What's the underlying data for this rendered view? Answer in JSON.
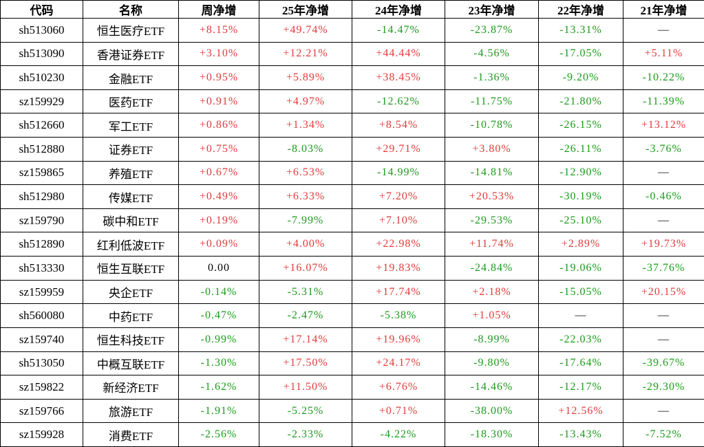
{
  "chart_data": {
    "type": "table",
    "columns": [
      "代码",
      "名称",
      "周净增",
      "25年净增",
      "24年净增",
      "23年净增",
      "22年净增",
      "21年净增"
    ],
    "rows": [
      [
        "sh513060",
        "恒生医疗ETF",
        "+8.15%",
        "+49.74%",
        "-14.47%",
        "-23.87%",
        "-13.31%",
        "—"
      ],
      [
        "sh513090",
        "香港证券ETF",
        "+3.10%",
        "+12.21%",
        "+44.44%",
        "-4.56%",
        "-17.05%",
        "+5.11%"
      ],
      [
        "sh510230",
        "金融ETF",
        "+0.95%",
        "+5.89%",
        "+38.45%",
        "-1.36%",
        "-9.20%",
        "-10.22%"
      ],
      [
        "sz159929",
        "医药ETF",
        "+0.91%",
        "+4.97%",
        "-12.62%",
        "-11.75%",
        "-21.80%",
        "-11.39%"
      ],
      [
        "sh512660",
        "军工ETF",
        "+0.86%",
        "+1.34%",
        "+8.54%",
        "-10.78%",
        "-26.15%",
        "+13.12%"
      ],
      [
        "sh512880",
        "证券ETF",
        "+0.75%",
        "-8.03%",
        "+29.71%",
        "+3.80%",
        "-26.11%",
        "-3.76%"
      ],
      [
        "sz159865",
        "养殖ETF",
        "+0.67%",
        "+6.53%",
        "-14.99%",
        "-14.81%",
        "-12.90%",
        "—"
      ],
      [
        "sh512980",
        "传媒ETF",
        "+0.49%",
        "+6.33%",
        "+7.20%",
        "+20.53%",
        "-30.19%",
        "-0.46%"
      ],
      [
        "sz159790",
        "碳中和ETF",
        "+0.19%",
        "-7.99%",
        "+7.10%",
        "-29.53%",
        "-25.10%",
        "—"
      ],
      [
        "sh512890",
        "红利低波ETF",
        "+0.09%",
        "+4.00%",
        "+22.98%",
        "+11.74%",
        "+2.89%",
        "+19.73%"
      ],
      [
        "sh513330",
        "恒生互联ETF",
        "0.00",
        "+16.07%",
        "+19.83%",
        "-24.84%",
        "-19.06%",
        "-37.76%"
      ],
      [
        "sz159959",
        "央企ETF",
        "-0.14%",
        "-5.31%",
        "+17.74%",
        "+2.18%",
        "-15.05%",
        "+20.15%"
      ],
      [
        "sh560080",
        "中药ETF",
        "-0.47%",
        "-2.47%",
        "-5.38%",
        "+1.05%",
        "—",
        "—"
      ],
      [
        "sz159740",
        "恒生科技ETF",
        "-0.99%",
        "+17.14%",
        "+19.96%",
        "-8.99%",
        "-22.03%",
        "—"
      ],
      [
        "sh513050",
        "中概互联ETF",
        "-1.30%",
        "+17.50%",
        "+24.17%",
        "-9.80%",
        "-17.64%",
        "-39.67%"
      ],
      [
        "sz159822",
        "新经济ETF",
        "-1.62%",
        "+11.50%",
        "+6.76%",
        "-14.46%",
        "-12.17%",
        "-29.30%"
      ],
      [
        "sz159766",
        "旅游ETF",
        "-1.91%",
        "-5.25%",
        "+0.71%",
        "-38.00%",
        "+12.56%",
        "—"
      ],
      [
        "sz159928",
        "消费ETF",
        "-2.56%",
        "-2.33%",
        "-4.22%",
        "-18.30%",
        "-13.43%",
        "-7.52%"
      ]
    ],
    "legend": "positive values shown in red, negative values shown in green, em-dash means no data",
    "grid": true
  },
  "colors": {
    "positive": "#e03a3a",
    "negative": "#1a9a1a",
    "neutral": "#000000",
    "border": "#000000",
    "background": "#ffffff"
  }
}
